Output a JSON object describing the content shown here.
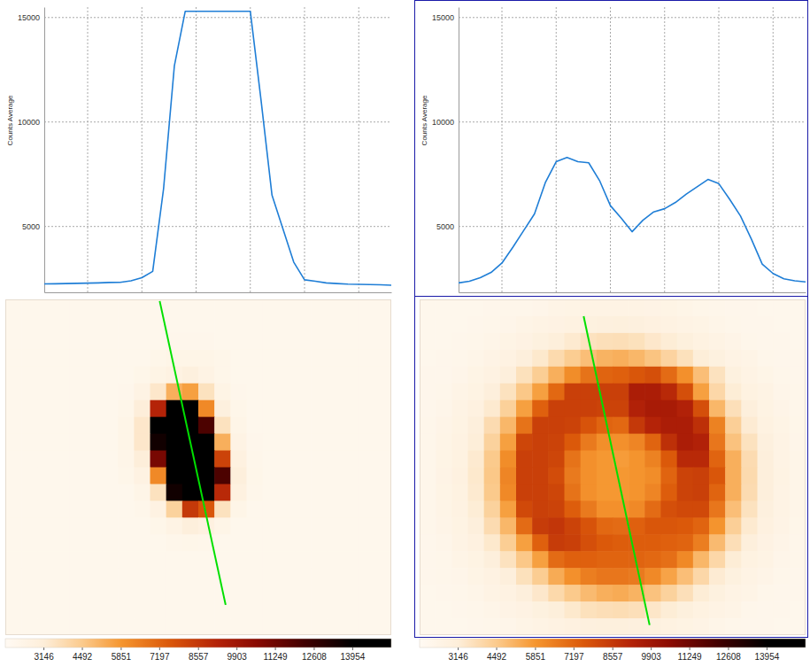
{
  "chart_data": [
    {
      "type": "line",
      "ylabel": "Counts Average",
      "x": [
        0,
        1,
        2,
        3,
        4,
        5,
        6,
        7,
        8,
        9,
        10,
        11,
        12,
        13,
        14,
        15,
        16,
        17,
        18,
        19,
        20,
        21,
        22,
        23,
        24,
        25,
        26,
        27,
        28,
        29,
        30,
        31,
        32
      ],
      "values": [
        2250,
        2260,
        2270,
        2280,
        2290,
        2300,
        2320,
        2330,
        2400,
        2550,
        2850,
        6800,
        12700,
        15300,
        15300,
        15300,
        15300,
        15300,
        15300,
        15300,
        11000,
        6500,
        4900,
        3300,
        2450,
        2380,
        2300,
        2270,
        2240,
        2230,
        2220,
        2210,
        2190
      ],
      "color": "#1f7ed6",
      "xlim": [
        0,
        32
      ],
      "ylim": [
        1850,
        15500
      ],
      "xticks": [
        4,
        9,
        14,
        19,
        24,
        29
      ],
      "yticks": [
        5000,
        10000,
        15000
      ],
      "grid": true,
      "tick_labels": "y"
    },
    {
      "type": "heatmap",
      "xlim": [
        0,
        24
      ],
      "ylim": [
        0,
        20
      ],
      "tick_labels": false,
      "clim": [
        1795,
        15305
      ],
      "cticks": [
        3146,
        4492,
        5851,
        7197,
        8557,
        9903,
        11249,
        12608,
        13954
      ],
      "profile": {
        "x": [
          9.6,
          13.7
        ],
        "y": [
          0.1,
          18.2
        ],
        "color": "#00e000"
      },
      "values": [
        [
          2150,
          2150,
          2150,
          2150,
          2150,
          2150,
          2150,
          2150,
          2150,
          2150,
          2150,
          2150,
          2150,
          2150,
          2150,
          2150,
          2150,
          2150,
          2150,
          2150,
          2150,
          2150,
          2150,
          2150
        ],
        [
          2150,
          2150,
          2150,
          2150,
          2150,
          2150,
          2150,
          2150,
          2150,
          2150,
          2150,
          2150,
          2150,
          2150,
          2150,
          2150,
          2150,
          2150,
          2150,
          2150,
          2150,
          2150,
          2150,
          2150
        ],
        [
          2150,
          2150,
          2150,
          2150,
          2150,
          2150,
          2150,
          2150,
          2150,
          2150,
          2200,
          2200,
          2200,
          2150,
          2150,
          2150,
          2150,
          2150,
          2150,
          2150,
          2150,
          2150,
          2150,
          2150
        ],
        [
          2150,
          2150,
          2150,
          2150,
          2150,
          2150,
          2150,
          2150,
          2150,
          2300,
          2400,
          2400,
          2400,
          2300,
          2150,
          2150,
          2150,
          2150,
          2150,
          2150,
          2150,
          2150,
          2150,
          2150
        ],
        [
          2150,
          2150,
          2150,
          2150,
          2150,
          2150,
          2150,
          2150,
          2300,
          2500,
          2700,
          2900,
          2600,
          2300,
          2150,
          2150,
          2150,
          2150,
          2150,
          2150,
          2150,
          2150,
          2150,
          2150
        ],
        [
          2150,
          2150,
          2150,
          2150,
          2150,
          2150,
          2150,
          2200,
          2600,
          3400,
          5200,
          5600,
          3600,
          2500,
          2200,
          2150,
          2150,
          2150,
          2150,
          2150,
          2150,
          2150,
          2150,
          2150
        ],
        [
          2150,
          2150,
          2150,
          2150,
          2150,
          2150,
          2150,
          2300,
          3100,
          9200,
          15300,
          15300,
          6200,
          2900,
          2300,
          2150,
          2150,
          2150,
          2150,
          2150,
          2150,
          2150,
          2150,
          2150
        ],
        [
          2150,
          2150,
          2150,
          2150,
          2150,
          2150,
          2150,
          2400,
          3400,
          14200,
          15300,
          15300,
          12000,
          3600,
          2400,
          2150,
          2150,
          2150,
          2150,
          2150,
          2150,
          2150,
          2150,
          2150
        ],
        [
          2150,
          2150,
          2150,
          2150,
          2150,
          2150,
          2150,
          2400,
          3400,
          13500,
          15300,
          15300,
          15300,
          5200,
          2600,
          2200,
          2150,
          2150,
          2150,
          2150,
          2150,
          2150,
          2150,
          2150
        ],
        [
          2150,
          2150,
          2150,
          2150,
          2150,
          2150,
          2150,
          2350,
          3100,
          11000,
          15300,
          15300,
          15300,
          8200,
          2800,
          2250,
          2150,
          2150,
          2150,
          2150,
          2150,
          2150,
          2150,
          2150
        ],
        [
          2150,
          2150,
          2150,
          2150,
          2150,
          2150,
          2150,
          2300,
          2700,
          6200,
          15300,
          15300,
          15300,
          12000,
          3000,
          2300,
          2150,
          2150,
          2150,
          2150,
          2150,
          2150,
          2150,
          2150
        ],
        [
          2150,
          2150,
          2150,
          2150,
          2150,
          2150,
          2150,
          2150,
          2400,
          3600,
          13500,
          15300,
          15300,
          9000,
          2800,
          2250,
          2150,
          2150,
          2150,
          2150,
          2150,
          2150,
          2150,
          2150
        ],
        [
          2150,
          2150,
          2150,
          2150,
          2150,
          2150,
          2150,
          2150,
          2250,
          2700,
          4200,
          8500,
          7600,
          3600,
          2400,
          2150,
          2150,
          2150,
          2150,
          2150,
          2150,
          2150,
          2150,
          2150
        ],
        [
          2150,
          2150,
          2150,
          2150,
          2150,
          2150,
          2150,
          2150,
          2150,
          2300,
          2600,
          3000,
          2800,
          2400,
          2150,
          2150,
          2150,
          2150,
          2150,
          2150,
          2150,
          2150,
          2150,
          2150
        ],
        [
          2150,
          2150,
          2150,
          2150,
          2150,
          2150,
          2150,
          2150,
          2150,
          2150,
          2250,
          2300,
          2250,
          2150,
          2150,
          2150,
          2150,
          2150,
          2150,
          2150,
          2150,
          2150,
          2150,
          2150
        ],
        [
          2150,
          2150,
          2150,
          2150,
          2150,
          2150,
          2150,
          2150,
          2150,
          2150,
          2150,
          2150,
          2150,
          2150,
          2150,
          2150,
          2150,
          2150,
          2150,
          2150,
          2150,
          2150,
          2150,
          2150
        ],
        [
          2150,
          2150,
          2150,
          2150,
          2150,
          2150,
          2150,
          2150,
          2150,
          2150,
          2150,
          2150,
          2150,
          2150,
          2150,
          2150,
          2150,
          2150,
          2150,
          2150,
          2150,
          2150,
          2150,
          2150
        ],
        [
          2150,
          2150,
          2150,
          2150,
          2150,
          2150,
          2150,
          2150,
          2150,
          2150,
          2150,
          2150,
          2150,
          2150,
          2150,
          2150,
          2150,
          2150,
          2150,
          2150,
          2150,
          2150,
          2150,
          2150
        ],
        [
          2150,
          2150,
          2150,
          2150,
          2150,
          2150,
          2150,
          2150,
          2150,
          2150,
          2150,
          2150,
          2150,
          2150,
          2150,
          2150,
          2150,
          2150,
          2150,
          2150,
          2150,
          2150,
          2150,
          2150
        ],
        [
          2150,
          2150,
          2150,
          2150,
          2150,
          2150,
          2150,
          2150,
          2150,
          2150,
          2150,
          2150,
          2150,
          2150,
          2150,
          2150,
          2150,
          2150,
          2150,
          2150,
          2150,
          2150,
          2150,
          2150
        ]
      ]
    },
    {
      "type": "line",
      "ylabel": "Counts Average",
      "x": [
        0,
        1,
        2,
        3,
        4,
        5,
        6,
        7,
        8,
        9,
        10,
        11,
        12,
        13,
        14,
        15,
        16,
        17,
        18,
        19,
        20,
        21,
        22,
        23,
        24,
        25,
        26,
        27,
        28,
        29,
        30,
        31,
        32
      ],
      "values": [
        2300,
        2380,
        2550,
        2800,
        3250,
        4000,
        4800,
        5600,
        7100,
        8100,
        8300,
        8100,
        8050,
        7200,
        6000,
        5400,
        4750,
        5300,
        5700,
        5850,
        6150,
        6550,
        6900,
        7250,
        7050,
        6300,
        5500,
        4400,
        3200,
        2750,
        2500,
        2400,
        2350
      ],
      "color": "#1f7ed6",
      "xlim": [
        0,
        32
      ],
      "ylim": [
        1850,
        15500
      ],
      "xticks": [
        4,
        9,
        14,
        19,
        24,
        29
      ],
      "yticks": [
        5000,
        10000,
        15000
      ],
      "grid": true,
      "tick_labels": "y"
    },
    {
      "type": "heatmap",
      "xlim": [
        0,
        24
      ],
      "ylim": [
        0,
        20
      ],
      "tick_labels": false,
      "clim": [
        1795,
        15305
      ],
      "cticks": [
        3146,
        4492,
        5851,
        7197,
        8557,
        9903,
        11249,
        12608,
        13954
      ],
      "profile": {
        "x": [
          10.2,
          14.3
        ],
        "y": [
          1.0,
          19.4
        ],
        "color": "#00e000"
      },
      "values": [
        [
          2150,
          2150,
          2150,
          2170,
          2200,
          2250,
          2250,
          2330,
          2450,
          2520,
          2560,
          2600,
          2600,
          2600,
          2540,
          2500,
          2400,
          2290,
          2250,
          2200,
          2200,
          2150,
          2150,
          2150
        ],
        [
          2150,
          2150,
          2170,
          2200,
          2240,
          2320,
          2470,
          2560,
          2650,
          2750,
          2850,
          2900,
          2920,
          2880,
          2800,
          2700,
          2600,
          2520,
          2380,
          2260,
          2220,
          2200,
          2160,
          2150
        ],
        [
          2150,
          2170,
          2200,
          2250,
          2360,
          2520,
          2650,
          2820,
          3050,
          3300,
          3600,
          3700,
          3750,
          3650,
          3400,
          3200,
          2950,
          2720,
          2580,
          2440,
          2280,
          2230,
          2200,
          2160
        ],
        [
          2160,
          2200,
          2240,
          2350,
          2540,
          2700,
          2980,
          3350,
          3900,
          4400,
          4800,
          5100,
          5200,
          5000,
          4650,
          4150,
          3650,
          3150,
          2820,
          2600,
          2450,
          2270,
          2220,
          2190
        ],
        [
          2190,
          2230,
          2320,
          2520,
          2700,
          3000,
          3650,
          4350,
          5200,
          6100,
          6800,
          7200,
          7300,
          7600,
          7800,
          7000,
          6000,
          4800,
          3600,
          2820,
          2590,
          2400,
          2250,
          2200
        ],
        [
          2200,
          2260,
          2450,
          2630,
          2980,
          3600,
          4550,
          5600,
          7100,
          8300,
          8300,
          8300,
          8300,
          9500,
          9500,
          9000,
          7800,
          5600,
          4000,
          3200,
          2750,
          2550,
          2330,
          2240
        ],
        [
          2230,
          2330,
          2550,
          2800,
          3300,
          4250,
          5600,
          7300,
          8300,
          8300,
          8300,
          8200,
          8200,
          9300,
          9600,
          9600,
          9300,
          7800,
          5000,
          3700,
          3000,
          2630,
          2440,
          2260
        ],
        [
          2240,
          2420,
          2620,
          2980,
          3850,
          5000,
          6800,
          8300,
          8300,
          8200,
          7700,
          7200,
          7100,
          8500,
          9200,
          9500,
          9500,
          8800,
          6400,
          4300,
          3250,
          2750,
          2520,
          2300
        ],
        [
          2260,
          2470,
          2700,
          3150,
          4200,
          5600,
          8100,
          8300,
          8200,
          7500,
          6600,
          6050,
          6000,
          6300,
          7200,
          8800,
          9500,
          9300,
          6700,
          4700,
          3600,
          2900,
          2580,
          2340
        ],
        [
          2270,
          2520,
          2750,
          3300,
          4500,
          6100,
          8300,
          8300,
          8100,
          6800,
          6000,
          5800,
          5700,
          5900,
          6400,
          7500,
          9000,
          9000,
          7200,
          5200,
          3850,
          2980,
          2600,
          2370
        ],
        [
          2250,
          2530,
          2760,
          3350,
          4550,
          6300,
          8300,
          8300,
          7900,
          6600,
          6000,
          5800,
          5800,
          5900,
          6100,
          7200,
          8200,
          8300,
          7600,
          5200,
          3900,
          3000,
          2610,
          2380
        ],
        [
          2270,
          2520,
          2750,
          3300,
          4500,
          6200,
          8300,
          8300,
          8100,
          6800,
          6000,
          5800,
          5800,
          5900,
          6300,
          7400,
          8200,
          8300,
          7200,
          5200,
          3850,
          2980,
          2600,
          2370
        ],
        [
          2260,
          2470,
          2700,
          3200,
          4200,
          5600,
          8000,
          8300,
          8200,
          7400,
          6600,
          6000,
          6000,
          6200,
          7000,
          7800,
          8000,
          8000,
          6700,
          4800,
          3600,
          2900,
          2580,
          2350
        ],
        [
          2240,
          2420,
          2620,
          2980,
          3850,
          5000,
          7000,
          8400,
          8600,
          8200,
          7700,
          7100,
          7000,
          7300,
          7600,
          7600,
          7500,
          7200,
          5900,
          4300,
          3300,
          2760,
          2530,
          2300
        ],
        [
          2230,
          2340,
          2560,
          2800,
          3350,
          4350,
          5600,
          7300,
          8400,
          8300,
          7800,
          7500,
          7400,
          7400,
          7400,
          7300,
          7200,
          6500,
          4900,
          3750,
          3000,
          2650,
          2440,
          2260
        ],
        [
          2200,
          2260,
          2450,
          2630,
          2980,
          3600,
          4550,
          5600,
          7000,
          7300,
          7300,
          7200,
          7200,
          7200,
          7100,
          6900,
          6200,
          5000,
          4000,
          3200,
          2750,
          2550,
          2330,
          2240
        ],
        [
          2190,
          2240,
          2320,
          2520,
          2700,
          3000,
          3650,
          4400,
          5300,
          6000,
          6500,
          6700,
          6700,
          6600,
          6200,
          5500,
          4800,
          4000,
          3250,
          2820,
          2590,
          2420,
          2260,
          2200
        ],
        [
          2160,
          2200,
          2240,
          2360,
          2550,
          2700,
          3000,
          3400,
          3950,
          4500,
          4900,
          5200,
          5300,
          5100,
          4700,
          4200,
          3700,
          3200,
          2820,
          2600,
          2450,
          2280,
          2220,
          2190
        ],
        [
          2150,
          2170,
          2200,
          2250,
          2360,
          2530,
          2650,
          2850,
          3050,
          3350,
          3650,
          3750,
          3800,
          3700,
          3450,
          3200,
          2950,
          2730,
          2590,
          2450,
          2280,
          2230,
          2200,
          2160
        ],
        [
          2150,
          2150,
          2180,
          2200,
          2250,
          2330,
          2470,
          2580,
          2670,
          2760,
          2880,
          2920,
          2950,
          2900,
          2820,
          2720,
          2610,
          2530,
          2390,
          2260,
          2230,
          2200,
          2160,
          2150
        ]
      ]
    }
  ]
}
